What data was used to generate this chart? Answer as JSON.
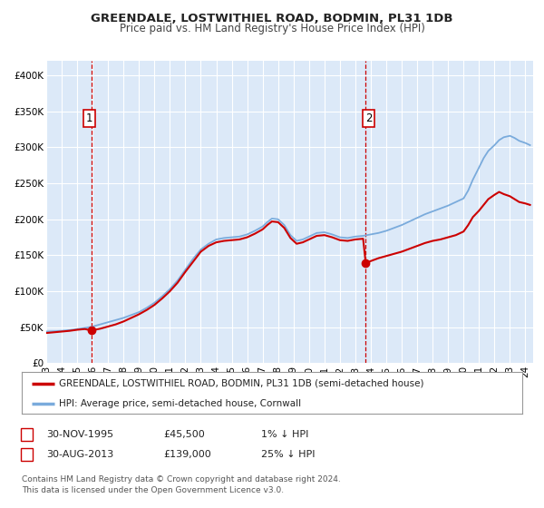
{
  "title": "GREENDALE, LOSTWITHIEL ROAD, BODMIN, PL31 1DB",
  "subtitle": "Price paid vs. HM Land Registry's House Price Index (HPI)",
  "ylim": [
    0,
    420000
  ],
  "xlim_start": 1993.0,
  "xlim_end": 2024.5,
  "yticks": [
    0,
    50000,
    100000,
    150000,
    200000,
    250000,
    300000,
    350000,
    400000
  ],
  "ytick_labels": [
    "£0",
    "£50K",
    "£100K",
    "£150K",
    "£200K",
    "£250K",
    "£300K",
    "£350K",
    "£400K"
  ],
  "xticks": [
    1993,
    1994,
    1995,
    1996,
    1997,
    1998,
    1999,
    2000,
    2001,
    2002,
    2003,
    2004,
    2005,
    2006,
    2007,
    2008,
    2009,
    2010,
    2011,
    2012,
    2013,
    2014,
    2015,
    2016,
    2017,
    2018,
    2019,
    2020,
    2021,
    2022,
    2023,
    2024
  ],
  "xtick_labels": [
    "93",
    "94",
    "95",
    "96",
    "97",
    "98",
    "99",
    "00",
    "01",
    "02",
    "03",
    "04",
    "05",
    "06",
    "07",
    "08",
    "09",
    "10",
    "11",
    "12",
    "13",
    "14",
    "15",
    "16",
    "17",
    "18",
    "19",
    "20",
    "21",
    "22",
    "23",
    "24"
  ],
  "background_color": "#ffffff",
  "plot_bg_color": "#dce9f8",
  "grid_color": "#ffffff",
  "red_line_color": "#cc0000",
  "blue_line_color": "#7aabdc",
  "point1_x": 1995.92,
  "point1_y": 45500,
  "point2_x": 2013.67,
  "point2_y": 139000,
  "vline_color": "#cc0000",
  "legend_label_red": "GREENDALE, LOSTWITHIEL ROAD, BODMIN, PL31 1DB (semi-detached house)",
  "legend_label_blue": "HPI: Average price, semi-detached house, Cornwall",
  "table_row1": [
    "1",
    "30-NOV-1995",
    "£45,500",
    "1% ↓ HPI"
  ],
  "table_row2": [
    "2",
    "30-AUG-2013",
    "£139,000",
    "25% ↓ HPI"
  ],
  "footer": "Contains HM Land Registry data © Crown copyright and database right 2024.\nThis data is licensed under the Open Government Licence v3.0.",
  "title_fontsize": 9.5,
  "subtitle_fontsize": 8.5,
  "tick_fontsize": 7.5,
  "legend_fontsize": 7.5,
  "table_fontsize": 8,
  "footer_fontsize": 6.5,
  "hpi_x": [
    1993.0,
    1993.5,
    1994.0,
    1994.5,
    1995.0,
    1995.5,
    1996.0,
    1996.5,
    1997.0,
    1997.5,
    1998.0,
    1998.5,
    1999.0,
    1999.5,
    2000.0,
    2000.5,
    2001.0,
    2001.5,
    2002.0,
    2002.5,
    2003.0,
    2003.5,
    2004.0,
    2004.5,
    2005.0,
    2005.5,
    2006.0,
    2006.5,
    2007.0,
    2007.3,
    2007.6,
    2008.0,
    2008.4,
    2008.8,
    2009.2,
    2009.6,
    2010.0,
    2010.5,
    2011.0,
    2011.5,
    2012.0,
    2012.5,
    2013.0,
    2013.5,
    2014.0,
    2014.5,
    2015.0,
    2015.5,
    2016.0,
    2016.5,
    2017.0,
    2017.5,
    2018.0,
    2018.5,
    2019.0,
    2019.5,
    2020.0,
    2020.3,
    2020.6,
    2021.0,
    2021.3,
    2021.6,
    2022.0,
    2022.3,
    2022.6,
    2023.0,
    2023.3,
    2023.6,
    2024.0,
    2024.3
  ],
  "hpi_y": [
    44000,
    44500,
    45000,
    46000,
    47500,
    49000,
    51000,
    54000,
    57000,
    60000,
    63000,
    67000,
    71000,
    77000,
    84000,
    93000,
    103000,
    115000,
    130000,
    145000,
    158000,
    166000,
    172000,
    174000,
    175000,
    176000,
    179000,
    184000,
    190000,
    196000,
    201000,
    200000,
    192000,
    178000,
    170000,
    172000,
    176000,
    181000,
    182000,
    179000,
    175000,
    174000,
    176000,
    177000,
    179000,
    181000,
    184000,
    188000,
    192000,
    197000,
    202000,
    207000,
    211000,
    215000,
    219000,
    224000,
    229000,
    240000,
    255000,
    272000,
    285000,
    295000,
    303000,
    310000,
    314000,
    316000,
    313000,
    309000,
    306000,
    303000
  ],
  "red_x": [
    1993.0,
    1993.5,
    1994.0,
    1994.5,
    1995.0,
    1995.5,
    1995.92,
    1996.5,
    1997.0,
    1997.5,
    1998.0,
    1998.5,
    1999.0,
    1999.5,
    2000.0,
    2000.5,
    2001.0,
    2001.5,
    2002.0,
    2002.5,
    2003.0,
    2003.5,
    2004.0,
    2004.5,
    2005.0,
    2005.5,
    2006.0,
    2006.5,
    2007.0,
    2007.3,
    2007.6,
    2008.0,
    2008.4,
    2008.8,
    2009.2,
    2009.6,
    2010.0,
    2010.5,
    2011.0,
    2011.5,
    2012.0,
    2012.5,
    2013.0,
    2013.5,
    2013.67,
    2014.0,
    2014.5,
    2015.0,
    2015.5,
    2016.0,
    2016.5,
    2017.0,
    2017.5,
    2018.0,
    2018.5,
    2019.0,
    2019.5,
    2020.0,
    2020.3,
    2020.6,
    2021.0,
    2021.3,
    2021.6,
    2022.0,
    2022.3,
    2022.6,
    2023.0,
    2023.3,
    2023.6,
    2024.0,
    2024.3
  ],
  "red_y": [
    42000,
    43000,
    44000,
    45000,
    46500,
    47500,
    45500,
    48000,
    51000,
    54000,
    58000,
    63000,
    68000,
    74000,
    81000,
    90000,
    100000,
    112000,
    127000,
    141000,
    155000,
    163000,
    168000,
    170000,
    171000,
    172000,
    175000,
    180000,
    186000,
    192000,
    197000,
    196000,
    188000,
    174000,
    166000,
    168000,
    172000,
    177000,
    178000,
    175000,
    171000,
    170000,
    172000,
    173000,
    139000,
    142000,
    146000,
    149000,
    152000,
    155000,
    159000,
    163000,
    167000,
    170000,
    172000,
    175000,
    178000,
    183000,
    192000,
    203000,
    212000,
    220000,
    228000,
    234000,
    238000,
    235000,
    232000,
    228000,
    224000,
    222000,
    220000
  ]
}
